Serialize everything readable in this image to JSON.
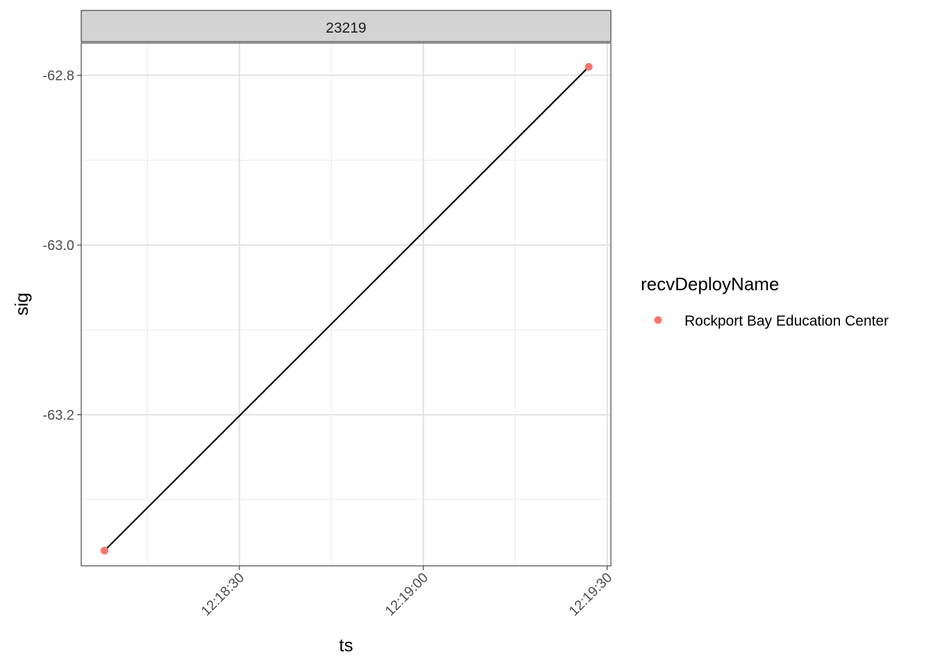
{
  "chart_data": {
    "type": "scatter",
    "panel_label": "23219",
    "xlabel": "ts",
    "ylabel": "sig",
    "x_ticks": [
      "12:18:30",
      "12:19:00",
      "12:19:30"
    ],
    "y_ticks": [
      "-62.8",
      "-63.0",
      "-63.2"
    ],
    "xlim": [
      "12:18:04.2",
      "12:19:30.6"
    ],
    "ylim": [
      -63.378,
      -62.762
    ],
    "grid": true,
    "legend_position": "right",
    "legend_title": "recvDeployName",
    "series": [
      {
        "name": "Rockport Bay Education Center",
        "color": "#F8766D",
        "points": [
          {
            "x": "12:18:08",
            "y": -63.36
          },
          {
            "x": "12:19:27",
            "y": -62.79
          }
        ]
      }
    ],
    "line_color": "#000000"
  }
}
